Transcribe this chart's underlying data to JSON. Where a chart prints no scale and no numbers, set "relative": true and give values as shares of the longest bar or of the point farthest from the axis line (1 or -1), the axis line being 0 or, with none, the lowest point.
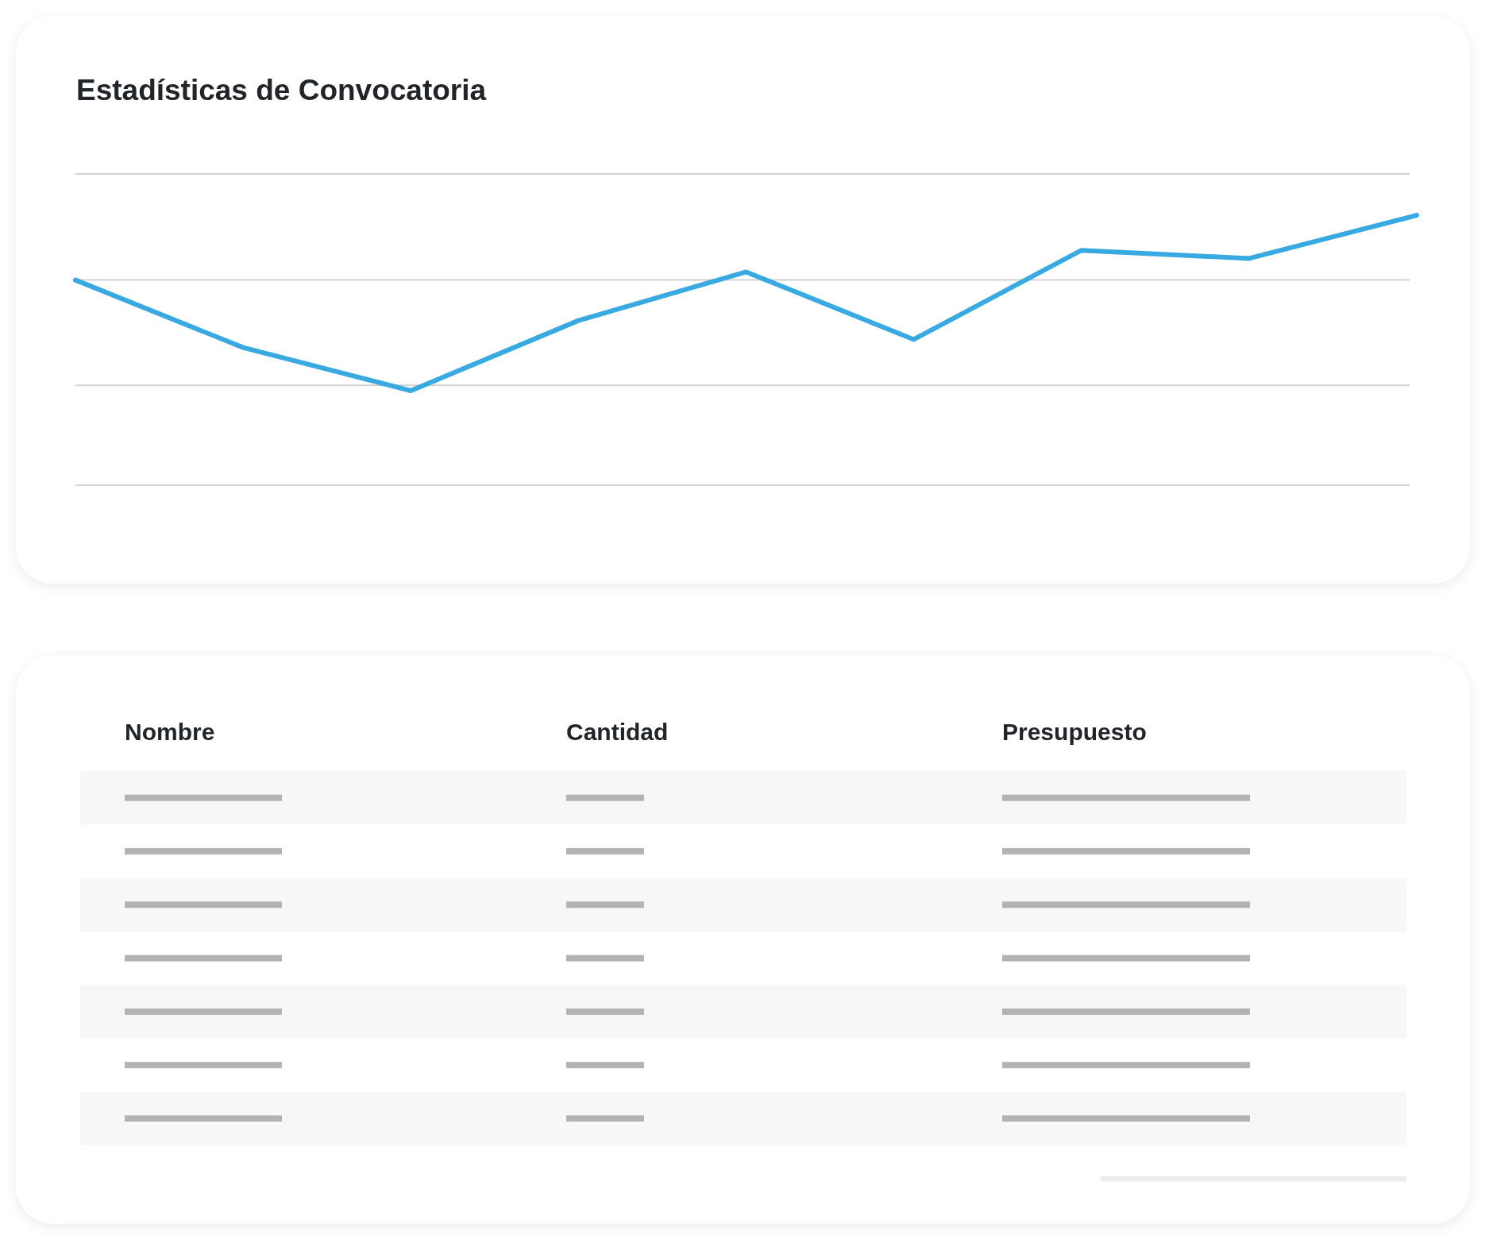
{
  "chart_data": [
    {
      "type": "line",
      "title": "Estadísticas de Convocatoria",
      "categories": [
        null,
        null,
        null,
        null,
        null,
        null,
        null,
        null,
        null
      ],
      "values": [
        0.76,
        0.51,
        0.35,
        0.61,
        0.79,
        0.54,
        0.87,
        0.84,
        1
      ],
      "color": "#38a9e1",
      "relative": true,
      "ref_lines": [
        {
          "axis": "y",
          "value": 0.37,
          "color": "#d2d2d2"
        },
        {
          "axis": "y",
          "value": 0.76,
          "color": "#d2d2d2"
        }
      ]
    },
    {
      "type": "other",
      "annotations": [
        "Nombre",
        "Cantidad",
        "Presupuesto"
      ]
    }
  ]
}
